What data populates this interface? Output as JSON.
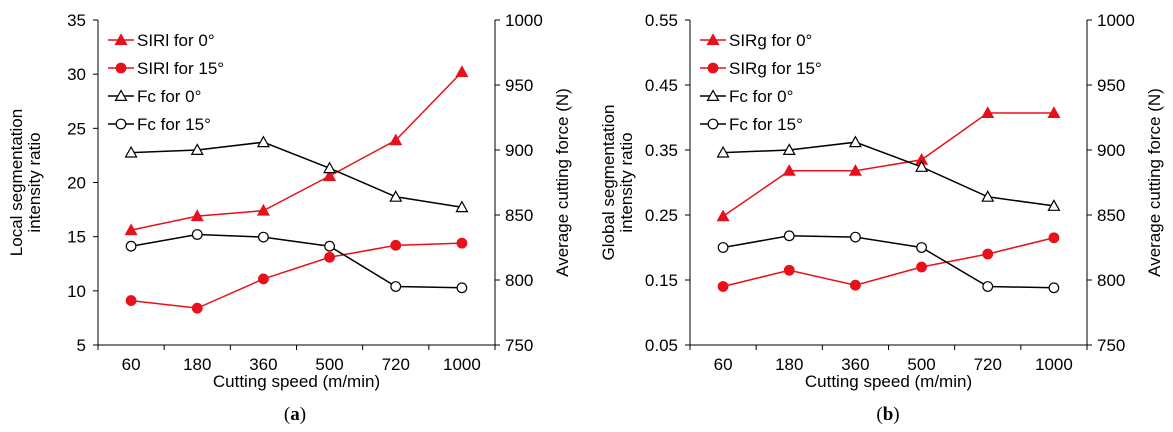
{
  "colors": {
    "red": "#e8101b",
    "black": "#000000"
  },
  "chart_data": [
    {
      "type": "line",
      "caption": "a",
      "categories": [
        "60",
        "180",
        "360",
        "500",
        "720",
        "1000"
      ],
      "xlabel": "Cutting speed (m/min)",
      "ylabel_lines": [
        "Local segmentation",
        "intensity ratio"
      ],
      "y2label": "Average cutting force (N)",
      "ylim": [
        5,
        35
      ],
      "yticks": [
        "5",
        "10",
        "15",
        "20",
        "25",
        "30",
        "35"
      ],
      "y2lim": [
        750,
        1000
      ],
      "y2ticks": [
        "750",
        "800",
        "850",
        "900",
        "950",
        "1000"
      ],
      "legend_position": "top-left",
      "series": [
        {
          "name": "SIRl for 0°",
          "axis": "left",
          "color": "#e8101b",
          "marker": "triangle-filled",
          "values": [
            15.6,
            16.9,
            17.4,
            20.6,
            23.9,
            30.2
          ]
        },
        {
          "name": "SIRl for 15°",
          "axis": "left",
          "color": "#e8101b",
          "marker": "circle-filled",
          "values": [
            9.1,
            8.4,
            11.1,
            13.1,
            14.2,
            14.4
          ]
        },
        {
          "name": "Fc for 0°",
          "axis": "right",
          "color": "#000000",
          "marker": "triangle-open",
          "values": [
            898,
            900,
            906,
            886,
            864,
            856
          ]
        },
        {
          "name": "Fc for 15°",
          "axis": "right",
          "color": "#000000",
          "marker": "circle-open",
          "values": [
            826,
            835,
            833,
            826,
            795,
            794
          ]
        }
      ]
    },
    {
      "type": "line",
      "caption": "b",
      "categories": [
        "60",
        "180",
        "360",
        "500",
        "720",
        "1000"
      ],
      "xlabel": "Cutting speed (m/min)",
      "ylabel_lines": [
        "Global segmentation",
        "intensity ratio"
      ],
      "y2label": "Average cutting force (N)",
      "ylim": [
        0.05,
        0.55
      ],
      "yticks": [
        "0.05",
        "0.15",
        "0.25",
        "0.35",
        "0.45",
        "0.55"
      ],
      "y2lim": [
        750,
        1000
      ],
      "y2ticks": [
        "750",
        "800",
        "850",
        "900",
        "950",
        "1000"
      ],
      "legend_position": "top-left",
      "series": [
        {
          "name": "SIRg for 0°",
          "axis": "left",
          "color": "#e8101b",
          "marker": "triangle-filled",
          "values": [
            0.248,
            0.318,
            0.318,
            0.335,
            0.407,
            0.407
          ]
        },
        {
          "name": "SIRg for 15°",
          "axis": "left",
          "color": "#e8101b",
          "marker": "circle-filled",
          "values": [
            0.14,
            0.165,
            0.142,
            0.17,
            0.19,
            0.215
          ]
        },
        {
          "name": "Fc for 0°",
          "axis": "right",
          "color": "#000000",
          "marker": "triangle-open",
          "values": [
            898,
            900,
            906,
            887,
            864,
            857
          ]
        },
        {
          "name": "Fc for 15°",
          "axis": "right",
          "color": "#000000",
          "marker": "circle-open",
          "values": [
            825,
            834,
            833,
            825,
            795,
            794
          ]
        }
      ]
    }
  ]
}
